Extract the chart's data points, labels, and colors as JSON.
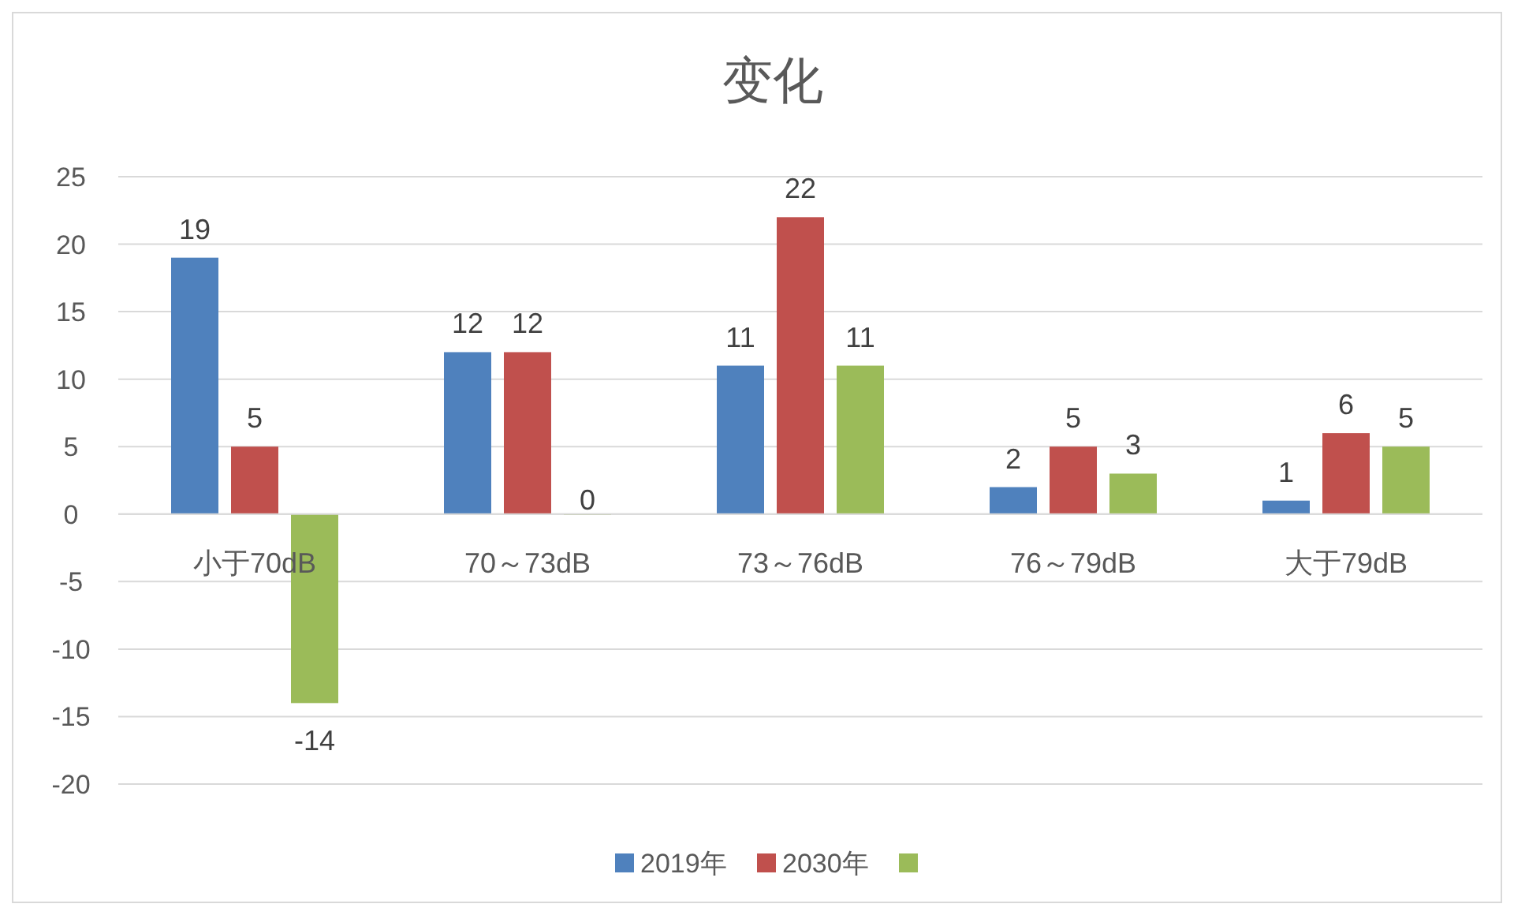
{
  "chart_data": {
    "type": "bar",
    "title": "变化",
    "categories": [
      "小于70dB",
      "70～73dB",
      "73～76dB",
      "76～79dB",
      "大于79dB"
    ],
    "series": [
      {
        "name": "2019年",
        "color": "#4f81bd",
        "values": [
          19,
          12,
          11,
          2,
          1
        ]
      },
      {
        "name": "2030年",
        "color": "#c0504d",
        "values": [
          5,
          12,
          22,
          5,
          6
        ]
      },
      {
        "color": "#9bbb59",
        "values": [
          -14,
          0,
          11,
          3,
          5
        ]
      }
    ],
    "ylim": [
      -20,
      25
    ],
    "yticks": [
      -20,
      -15,
      -10,
      -5,
      0,
      5,
      10,
      15,
      20,
      25
    ],
    "grid": "y",
    "data_labels": true,
    "legend": "bottom"
  }
}
